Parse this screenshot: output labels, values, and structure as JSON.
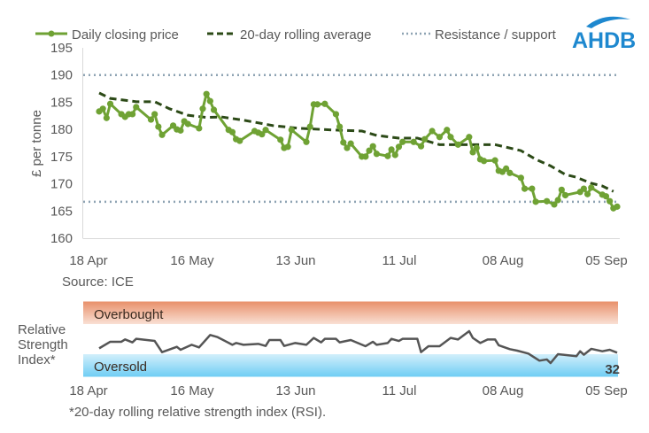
{
  "logo": {
    "text": "AHDB",
    "color": "#1e88cf"
  },
  "source": "Source: ICE",
  "footnote": "*20-day rolling relative strength index (RSI).",
  "chart_data": [
    {
      "type": "line",
      "ylabel": "£ per tonne",
      "ylim": [
        160,
        195
      ],
      "yticks": [
        "160",
        "165",
        "170",
        "175",
        "180",
        "185",
        "190",
        "195"
      ],
      "xlim": [
        "18 Apr",
        "05 Sep"
      ],
      "xticks": [
        "18 Apr",
        "16 May",
        "13 Jun",
        "11 Jul",
        "08 Aug",
        "05 Sep"
      ],
      "grid": false,
      "legend_position": "top",
      "colors": {
        "price": "#6fa234",
        "average": "#2c4a17",
        "levels": "#8ea3b3"
      },
      "series": [
        {
          "name": "Daily closing price",
          "style": "solid-markers",
          "points": [
            [
              "18 Apr",
              183.3
            ],
            [
              "19 Apr",
              183.8
            ],
            [
              "20 Apr",
              182.1
            ],
            [
              "21 Apr",
              184.7
            ],
            [
              "24 Apr",
              182.8
            ],
            [
              "25 Apr",
              182.3
            ],
            [
              "26 Apr",
              182.8
            ],
            [
              "27 Apr",
              182.8
            ],
            [
              "28 Apr",
              184.1
            ],
            [
              "02 May",
              181.8
            ],
            [
              "03 May",
              182.8
            ],
            [
              "04 May",
              180.5
            ],
            [
              "05 May",
              179.0
            ],
            [
              "08 May",
              180.7
            ],
            [
              "09 May",
              180.0
            ],
            [
              "10 May",
              179.8
            ],
            [
              "11 May",
              181.5
            ],
            [
              "12 May",
              181.0
            ],
            [
              "15 May",
              180.2
            ],
            [
              "16 May",
              183.8
            ],
            [
              "17 May",
              186.5
            ],
            [
              "18 May",
              185.2
            ],
            [
              "19 May",
              183.6
            ],
            [
              "23 May",
              179.9
            ],
            [
              "24 May",
              179.5
            ],
            [
              "25 May",
              178.2
            ],
            [
              "26 May",
              177.9
            ],
            [
              "30 May",
              179.7
            ],
            [
              "31 May",
              179.4
            ],
            [
              "01 Jun",
              179.1
            ],
            [
              "02 Jun",
              179.9
            ],
            [
              "06 Jun",
              178.1
            ],
            [
              "07 Jun",
              176.6
            ],
            [
              "08 Jun",
              176.8
            ],
            [
              "09 Jun",
              179.9
            ],
            [
              "13 Jun",
              177.7
            ],
            [
              "14 Jun",
              180.5
            ],
            [
              "15 Jun",
              184.6
            ],
            [
              "16 Jun",
              184.6
            ],
            [
              "18 Jun",
              184.7
            ],
            [
              "21 Jun",
              182.8
            ],
            [
              "22 Jun",
              180.5
            ],
            [
              "23 Jun",
              177.6
            ],
            [
              "24 Jun",
              176.6
            ],
            [
              "25 Jun",
              177.4
            ],
            [
              "28 Jun",
              175.0
            ],
            [
              "29 Jun",
              175.0
            ],
            [
              "30 Jun",
              176.1
            ],
            [
              "01 Jul",
              176.9
            ],
            [
              "02 Jul",
              175.5
            ],
            [
              "05 Jul",
              175.1
            ],
            [
              "06 Jul",
              176.3
            ],
            [
              "07 Jul",
              175.3
            ],
            [
              "08 Jul",
              176.8
            ],
            [
              "09 Jul",
              177.7
            ],
            [
              "12 Jul",
              177.7
            ],
            [
              "14 Jul",
              176.9
            ],
            [
              "15 Jul",
              178.2
            ],
            [
              "17 Jul",
              179.7
            ],
            [
              "19 Jul",
              178.6
            ],
            [
              "21 Jul",
              179.9
            ],
            [
              "22 Jul",
              178.6
            ],
            [
              "24 Jul",
              177.2
            ],
            [
              "27 Jul",
              178.6
            ],
            [
              "28 Jul",
              175.8
            ],
            [
              "29 Jul",
              176.6
            ],
            [
              "30 Jul",
              174.5
            ],
            [
              "31 Jul",
              174.2
            ],
            [
              "03 Aug",
              174.3
            ],
            [
              "04 Aug",
              172.4
            ],
            [
              "05 Aug",
              172.2
            ],
            [
              "06 Aug",
              172.8
            ],
            [
              "07 Aug",
              172.0
            ],
            [
              "10 Aug",
              171.1
            ],
            [
              "11 Aug",
              169.1
            ],
            [
              "13 Aug",
              169.1
            ],
            [
              "14 Aug",
              166.7
            ],
            [
              "17 Aug",
              166.8
            ],
            [
              "19 Aug",
              166.2
            ],
            [
              "20 Aug",
              167.0
            ],
            [
              "21 Aug",
              168.9
            ],
            [
              "22 Aug",
              167.9
            ],
            [
              "26 Aug",
              168.5
            ],
            [
              "27 Aug",
              169.1
            ],
            [
              "28 Aug",
              168.1
            ],
            [
              "29 Aug",
              169.3
            ],
            [
              "01 Sep",
              168.0
            ],
            [
              "02 Sep",
              167.7
            ],
            [
              "03 Sep",
              166.8
            ],
            [
              "04 Sep",
              165.5
            ],
            [
              "05 Sep",
              165.8
            ]
          ]
        },
        {
          "name": "20-day rolling average",
          "style": "dashed",
          "points": [
            [
              "18 Apr",
              186.7
            ],
            [
              "21 Apr",
              185.7
            ],
            [
              "28 Apr",
              185.1
            ],
            [
              "03 May",
              185.1
            ],
            [
              "07 May",
              183.8
            ],
            [
              "12 May",
              182.6
            ],
            [
              "17 May",
              182.2
            ],
            [
              "21 May",
              182.3
            ],
            [
              "27 May",
              181.7
            ],
            [
              "04 Jun",
              180.7
            ],
            [
              "11 Jun",
              180.2
            ],
            [
              "20 Jun",
              179.9
            ],
            [
              "28 Jun",
              179.7
            ],
            [
              "02 Jul",
              178.9
            ],
            [
              "08 Jul",
              178.4
            ],
            [
              "13 Jul",
              178.4
            ],
            [
              "19 Jul",
              177.2
            ],
            [
              "27 Jul",
              177.2
            ],
            [
              "03 Aug",
              177.2
            ],
            [
              "10 Aug",
              176.1
            ],
            [
              "14 Aug",
              174.5
            ],
            [
              "18 Aug",
              173.3
            ],
            [
              "22 Aug",
              171.7
            ],
            [
              "25 Aug",
              171.2
            ],
            [
              "29 Aug",
              170.1
            ],
            [
              "01 Sep",
              169.6
            ],
            [
              "04 Sep",
              168.6
            ]
          ]
        },
        {
          "name": "Resistance / support",
          "style": "dotted",
          "levels": [
            190,
            166.7
          ]
        }
      ]
    },
    {
      "type": "line",
      "ylabel": "Relative Strength Index*",
      "ylim": [
        0,
        100
      ],
      "xlim": [
        "18 Apr",
        "05 Sep"
      ],
      "xticks": [
        "18 Apr",
        "16 May",
        "13 Jun",
        "11 Jul",
        "08 Aug",
        "05 Sep"
      ],
      "bands": [
        {
          "label": "Overbought",
          "range": [
            70,
            100
          ],
          "colors": [
            "#e8906a",
            "#f9e0d4"
          ]
        },
        {
          "label": "Oversold",
          "range": [
            0,
            30
          ],
          "colors": [
            "#d2effb",
            "#6fcdf4"
          ]
        }
      ],
      "line_color": "#555555",
      "last_value_label": "32",
      "points": [
        [
          "18 Apr",
          37.8
        ],
        [
          "21 Apr",
          46.5
        ],
        [
          "24 Apr",
          46.5
        ],
        [
          "25 Apr",
          49.6
        ],
        [
          "27 Apr",
          45.7
        ],
        [
          "28 Apr",
          50.4
        ],
        [
          "03 May",
          47.6
        ],
        [
          "05 May",
          32.7
        ],
        [
          "09 May",
          39.8
        ],
        [
          "10 May",
          35.9
        ],
        [
          "13 May",
          42.5
        ],
        [
          "15 May",
          39.0
        ],
        [
          "18 May",
          55.5
        ],
        [
          "20 May",
          52.7
        ],
        [
          "24 May",
          42.5
        ],
        [
          "25 May",
          44.9
        ],
        [
          "27 May",
          42.5
        ],
        [
          "31 May",
          43.7
        ],
        [
          "02 Jun",
          41.0
        ],
        [
          "03 Jun",
          48.8
        ],
        [
          "06 Jun",
          48.8
        ],
        [
          "07 Jun",
          41.0
        ],
        [
          "10 Jun",
          44.9
        ],
        [
          "13 Jun",
          42.5
        ],
        [
          "15 Jun",
          51.6
        ],
        [
          "17 Jun",
          45.7
        ],
        [
          "18 Jun",
          50.4
        ],
        [
          "21 Jun",
          50.4
        ],
        [
          "22 Jun",
          45.7
        ],
        [
          "25 Jun",
          48.8
        ],
        [
          "29 Jun",
          40.6
        ],
        [
          "01 Jul",
          46.5
        ],
        [
          "02 Jul",
          42.5
        ],
        [
          "05 Jul",
          44.9
        ],
        [
          "06 Jul",
          50.4
        ],
        [
          "08 Jul",
          47.6
        ],
        [
          "09 Jul",
          50.4
        ],
        [
          "13 Jul",
          50.4
        ],
        [
          "14 Jul",
          32.7
        ],
        [
          "16 Jul",
          40.6
        ],
        [
          "19 Jul",
          40.6
        ],
        [
          "22 Jul",
          51.6
        ],
        [
          "24 Jul",
          49.6
        ],
        [
          "27 Jul",
          60.6
        ],
        [
          "28 Jul",
          51.6
        ],
        [
          "30 Jul",
          44.9
        ],
        [
          "01 Aug",
          49.6
        ],
        [
          "03 Aug",
          49.6
        ],
        [
          "04 Aug",
          41.8
        ],
        [
          "07 Aug",
          36.7
        ],
        [
          "09 Aug",
          34.7
        ],
        [
          "12 Aug",
          30.8
        ],
        [
          "15 Aug",
          21.4
        ],
        [
          "17 Aug",
          23.0
        ],
        [
          "18 Aug",
          18.2
        ],
        [
          "20 Aug",
          30.0
        ],
        [
          "25 Aug",
          27.3
        ],
        [
          "26 Aug",
          33.9
        ],
        [
          "27 Aug",
          29.3
        ],
        [
          "29 Aug",
          37.1
        ],
        [
          "01 Sep",
          33.9
        ],
        [
          "03 Sep",
          35.9
        ],
        [
          "05 Sep",
          32.0
        ]
      ]
    }
  ]
}
